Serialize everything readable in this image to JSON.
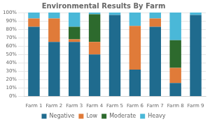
{
  "chart_data": {
    "type": "bar",
    "title": "Environmental Results By Farm",
    "categories": [
      "Farm 1",
      "Farm 2",
      "Farm 3",
      "Farm 4",
      "Farm 5",
      "Farm 6",
      "Farm 7",
      "Farm 8",
      "Farm 9"
    ],
    "series": [
      {
        "name": "Negative",
        "color": "#1f6b8e",
        "values": [
          83,
          65,
          65,
          50,
          97,
          32,
          83,
          16,
          97
        ]
      },
      {
        "name": "Low",
        "color": "#e07b39",
        "values": [
          10,
          28,
          3,
          15,
          0,
          52,
          10,
          18,
          0
        ]
      },
      {
        "name": "Moderate",
        "color": "#2d6a2d",
        "values": [
          0,
          0,
          15,
          33,
          0,
          0,
          0,
          33,
          0
        ]
      },
      {
        "name": "Heavy",
        "color": "#4ab8d8",
        "values": [
          7,
          7,
          17,
          2,
          3,
          16,
          7,
          33,
          3
        ]
      }
    ],
    "stacked": true,
    "ylim": [
      0,
      100
    ],
    "yticks": [
      {
        "value": 0,
        "label": "0%"
      },
      {
        "value": 10,
        "label": "10%"
      },
      {
        "value": 20,
        "label": "20%"
      },
      {
        "value": 30,
        "label": "30%"
      },
      {
        "value": 40,
        "label": "40%"
      },
      {
        "value": 50,
        "label": "50%"
      },
      {
        "value": 60,
        "label": "60%"
      },
      {
        "value": 70,
        "label": "70%"
      },
      {
        "value": 80,
        "label": "80%"
      },
      {
        "value": 90,
        "label": "90%"
      },
      {
        "value": 100,
        "label": "100%"
      }
    ],
    "grid": true,
    "legend": "bottom"
  }
}
